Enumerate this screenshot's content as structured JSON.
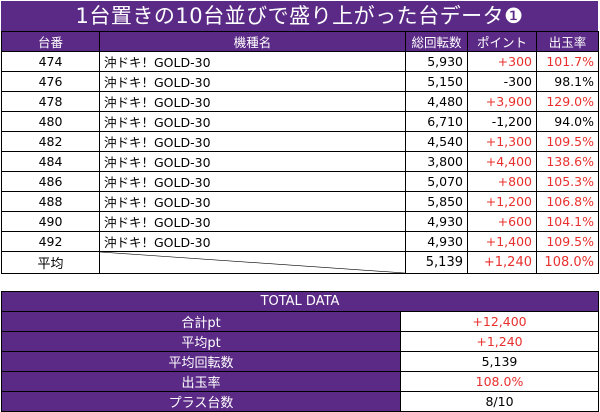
{
  "title": "1台置きの10台並びで盛り上がった台データ❶",
  "headers": [
    "台番",
    "機種名",
    "総回転数",
    "ポイント",
    "出玉率"
  ],
  "rows": [
    {
      "num": "474",
      "model": "沖ドキ！GOLD-30",
      "spins": "5,930",
      "points": "+300",
      "points_color": "#e8302e",
      "rate": "101.7%",
      "rate_color": "#e8302e"
    },
    {
      "num": "476",
      "model": "沖ドキ！GOLD-30",
      "spins": "5,150",
      "points": "-300",
      "points_color": "#000000",
      "rate": "98.1%",
      "rate_color": "#000000"
    },
    {
      "num": "478",
      "model": "沖ドキ！GOLD-30",
      "spins": "4,480",
      "points": "+3,900",
      "points_color": "#e8302e",
      "rate": "129.0%",
      "rate_color": "#e8302e"
    },
    {
      "num": "480",
      "model": "沖ドキ！GOLD-30",
      "spins": "6,710",
      "points": "-1,200",
      "points_color": "#000000",
      "rate": "94.0%",
      "rate_color": "#000000"
    },
    {
      "num": "482",
      "model": "沖ドキ！GOLD-30",
      "spins": "4,540",
      "points": "+1,300",
      "points_color": "#e8302e",
      "rate": "109.5%",
      "rate_color": "#e8302e"
    },
    {
      "num": "484",
      "model": "沖ドキ！GOLD-30",
      "spins": "3,800",
      "points": "+4,400",
      "points_color": "#e8302e",
      "rate": "138.6%",
      "rate_color": "#e8302e"
    },
    {
      "num": "486",
      "model": "沖ドキ！GOLD-30",
      "spins": "5,070",
      "points": "+800",
      "points_color": "#e8302e",
      "rate": "105.3%",
      "rate_color": "#e8302e"
    },
    {
      "num": "488",
      "model": "沖ドキ！GOLD-30",
      "spins": "5,850",
      "points": "+1,200",
      "points_color": "#e8302e",
      "rate": "106.8%",
      "rate_color": "#e8302e"
    },
    {
      "num": "490",
      "model": "沖ドキ！GOLD-30",
      "spins": "4,930",
      "points": "+600",
      "points_color": "#e8302e",
      "rate": "104.1%",
      "rate_color": "#e8302e"
    },
    {
      "num": "492",
      "model": "沖ドキ！GOLD-30",
      "spins": "4,930",
      "points": "+1,400",
      "points_color": "#e8302e",
      "rate": "109.5%",
      "rate_color": "#e8302e"
    }
  ],
  "average": {
    "label": "平均",
    "spins": "5,139",
    "points": "+1,240",
    "rate": "108.0%"
  },
  "total": {
    "header": "TOTAL DATA",
    "rows": [
      {
        "label": "合計pt",
        "value": "+12,400",
        "color": "#e8302e"
      },
      {
        "label": "平均pt",
        "value": "+1,240",
        "color": "#e8302e"
      },
      {
        "label": "平均回転数",
        "value": "5,139",
        "color": "#000000"
      },
      {
        "label": "出玉率",
        "value": "108.0%",
        "color": "#e8302e"
      },
      {
        "label": "プラス台数",
        "value": "8/10",
        "color": "#000000"
      }
    ]
  },
  "colors": {
    "header_bg": "#5b2a86",
    "positive": "#e8302e",
    "text": "#000000"
  }
}
